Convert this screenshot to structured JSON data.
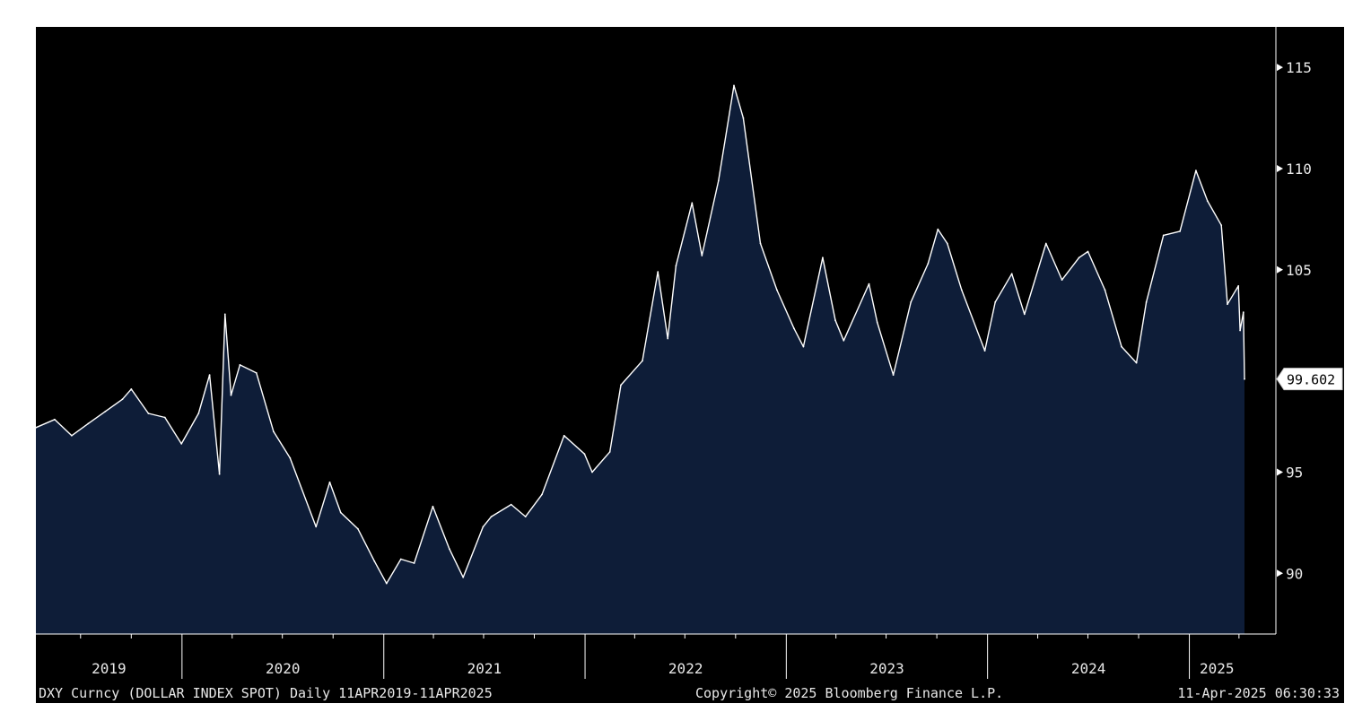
{
  "chart_data": {
    "type": "area",
    "ticker": "DXY Curncy",
    "instrument": "DOLLAR INDEX SPOT",
    "frequency": "Daily",
    "range_label": "11APR2019-11APR2025",
    "copyright": "Copyright© 2025 Bloomberg Finance L.P.",
    "timestamp": "11-Apr-2025 06:30:33",
    "last_value_label": "99.602",
    "x_range": [
      "2019-04-11",
      "2025-04-11"
    ],
    "ylim": [
      87.0,
      117.0
    ],
    "y_ticks": [
      90,
      95,
      105,
      110,
      115
    ],
    "y_tick_labels": [
      "90",
      "95",
      "105",
      "110",
      "115"
    ],
    "x_tick_labels": [
      "2019",
      "2020",
      "2021",
      "2022",
      "2023",
      "2024",
      "2025"
    ],
    "grid": false,
    "colors": {
      "background": "#000000",
      "area_fill": "#0e1d38",
      "line": "#ffffff",
      "axis": "#ffffff",
      "text": "#e8e8e8"
    },
    "series": [
      {
        "x": [
          "2019-04-11",
          "2019-05-15",
          "2019-06-15",
          "2019-07-15",
          "2019-08-15",
          "2019-09-15",
          "2019-10-01",
          "2019-11-01",
          "2019-12-01",
          "2019-12-31",
          "2020-01-31",
          "2020-02-20",
          "2020-03-09",
          "2020-03-19",
          "2020-03-30",
          "2020-04-15",
          "2020-05-15",
          "2020-06-15",
          "2020-07-15",
          "2020-08-31",
          "2020-09-25",
          "2020-10-15",
          "2020-11-15",
          "2020-12-15",
          "2021-01-06",
          "2021-02-01",
          "2021-02-25",
          "2021-03-31",
          "2021-04-30",
          "2021-05-25",
          "2021-06-30",
          "2021-07-15",
          "2021-08-20",
          "2021-09-15",
          "2021-10-15",
          "2021-11-24",
          "2021-12-31",
          "2022-01-14",
          "2022-02-15",
          "2022-03-07",
          "2022-04-15",
          "2022-05-13",
          "2022-05-31",
          "2022-06-15",
          "2022-07-14",
          "2022-08-01",
          "2022-08-31",
          "2022-09-28",
          "2022-10-15",
          "2022-11-15",
          "2022-12-15",
          "2023-01-15",
          "2023-02-01",
          "2023-03-08",
          "2023-03-31",
          "2023-04-15",
          "2023-05-31",
          "2023-06-15",
          "2023-07-14",
          "2023-08-15",
          "2023-09-15",
          "2023-10-03",
          "2023-10-20",
          "2023-11-15",
          "2023-12-27",
          "2024-01-15",
          "2024-02-14",
          "2024-03-08",
          "2024-04-16",
          "2024-05-15",
          "2024-06-15",
          "2024-07-01",
          "2024-08-01",
          "2024-08-31",
          "2024-09-27",
          "2024-10-15",
          "2024-11-15",
          "2024-12-15",
          "2025-01-13",
          "2025-02-03",
          "2025-02-28",
          "2025-03-11",
          "2025-03-31",
          "2025-04-03",
          "2025-04-09",
          "2025-04-11"
        ],
        "values": [
          97.2,
          97.6,
          96.8,
          97.4,
          98.0,
          98.6,
          99.1,
          97.9,
          97.7,
          96.4,
          97.9,
          99.8,
          94.9,
          102.8,
          98.8,
          100.3,
          99.9,
          97.0,
          95.7,
          92.3,
          94.5,
          93.0,
          92.2,
          90.6,
          89.5,
          90.7,
          90.5,
          93.3,
          91.2,
          89.8,
          92.3,
          92.8,
          93.4,
          92.8,
          93.9,
          96.8,
          95.9,
          95.0,
          96.0,
          99.3,
          100.5,
          104.9,
          101.6,
          105.2,
          108.3,
          105.7,
          109.4,
          114.1,
          112.5,
          106.3,
          104.0,
          102.1,
          101.2,
          105.6,
          102.5,
          101.5,
          104.3,
          102.4,
          99.8,
          103.4,
          105.3,
          107.0,
          106.3,
          104.0,
          101.0,
          103.4,
          104.8,
          102.8,
          106.3,
          104.5,
          105.6,
          105.9,
          104.0,
          101.2,
          100.4,
          103.4,
          106.7,
          106.9,
          109.9,
          108.4,
          107.2,
          103.3,
          104.2,
          102.0,
          102.9,
          99.6
        ]
      }
    ]
  }
}
